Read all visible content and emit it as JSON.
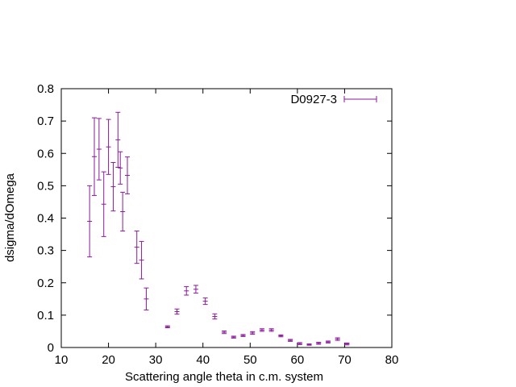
{
  "chart_data": {
    "type": "scatter",
    "title": "",
    "xlabel": "Scattering angle theta in c.m. system",
    "ylabel": "dsigma/dOmega",
    "xlim": [
      10,
      80
    ],
    "ylim": [
      0,
      0.8
    ],
    "xticks": [
      "10",
      "20",
      "30",
      "40",
      "50",
      "60",
      "70",
      "80"
    ],
    "yticks": [
      "0",
      "0.1",
      "0.2",
      "0.3",
      "0.4",
      "0.5",
      "0.6",
      "0.7",
      "0.8"
    ],
    "xtick_values": [
      10,
      20,
      30,
      40,
      50,
      60,
      70,
      80
    ],
    "ytick_values": [
      0,
      0.1,
      0.2,
      0.3,
      0.4,
      0.5,
      0.6,
      0.7,
      0.8
    ],
    "grid": false,
    "legend_position": "top-right",
    "color": "#8b1a9b",
    "series": [
      {
        "name": "D0927-3",
        "points": [
          {
            "x": 16.0,
            "y": 0.39,
            "err": 0.11
          },
          {
            "x": 17.0,
            "y": 0.59,
            "err": 0.12
          },
          {
            "x": 18.0,
            "y": 0.613,
            "err": 0.095
          },
          {
            "x": 19.0,
            "y": 0.443,
            "err": 0.1
          },
          {
            "x": 20.0,
            "y": 0.62,
            "err": 0.085
          },
          {
            "x": 21.0,
            "y": 0.497,
            "err": 0.075
          },
          {
            "x": 22.0,
            "y": 0.642,
            "err": 0.085
          },
          {
            "x": 22.5,
            "y": 0.555,
            "err": 0.05
          },
          {
            "x": 23.0,
            "y": 0.42,
            "err": 0.06
          },
          {
            "x": 24.0,
            "y": 0.532,
            "err": 0.057
          },
          {
            "x": 26.0,
            "y": 0.31,
            "err": 0.05
          },
          {
            "x": 27.0,
            "y": 0.27,
            "err": 0.058
          },
          {
            "x": 28.0,
            "y": 0.15,
            "err": 0.034
          },
          {
            "x": 32.5,
            "y": 0.064,
            "err": 0.003
          },
          {
            "x": 34.5,
            "y": 0.111,
            "err": 0.008
          },
          {
            "x": 36.5,
            "y": 0.175,
            "err": 0.013
          },
          {
            "x": 38.5,
            "y": 0.18,
            "err": 0.012
          },
          {
            "x": 40.5,
            "y": 0.143,
            "err": 0.01
          },
          {
            "x": 42.5,
            "y": 0.096,
            "err": 0.008
          },
          {
            "x": 44.5,
            "y": 0.047,
            "err": 0.004
          },
          {
            "x": 46.5,
            "y": 0.032,
            "err": 0.003
          },
          {
            "x": 48.5,
            "y": 0.037,
            "err": 0.003
          },
          {
            "x": 50.5,
            "y": 0.045,
            "err": 0.004
          },
          {
            "x": 52.5,
            "y": 0.054,
            "err": 0.004
          },
          {
            "x": 54.5,
            "y": 0.054,
            "err": 0.004
          },
          {
            "x": 56.5,
            "y": 0.036,
            "err": 0.003
          },
          {
            "x": 58.5,
            "y": 0.022,
            "err": 0.003
          },
          {
            "x": 60.5,
            "y": 0.012,
            "err": 0.003
          },
          {
            "x": 62.5,
            "y": 0.009,
            "err": 0.002
          },
          {
            "x": 64.5,
            "y": 0.013,
            "err": 0.003
          },
          {
            "x": 66.5,
            "y": 0.017,
            "err": 0.003
          },
          {
            "x": 68.5,
            "y": 0.026,
            "err": 0.004
          },
          {
            "x": 70.5,
            "y": 0.011,
            "err": 0.003
          }
        ]
      }
    ]
  }
}
